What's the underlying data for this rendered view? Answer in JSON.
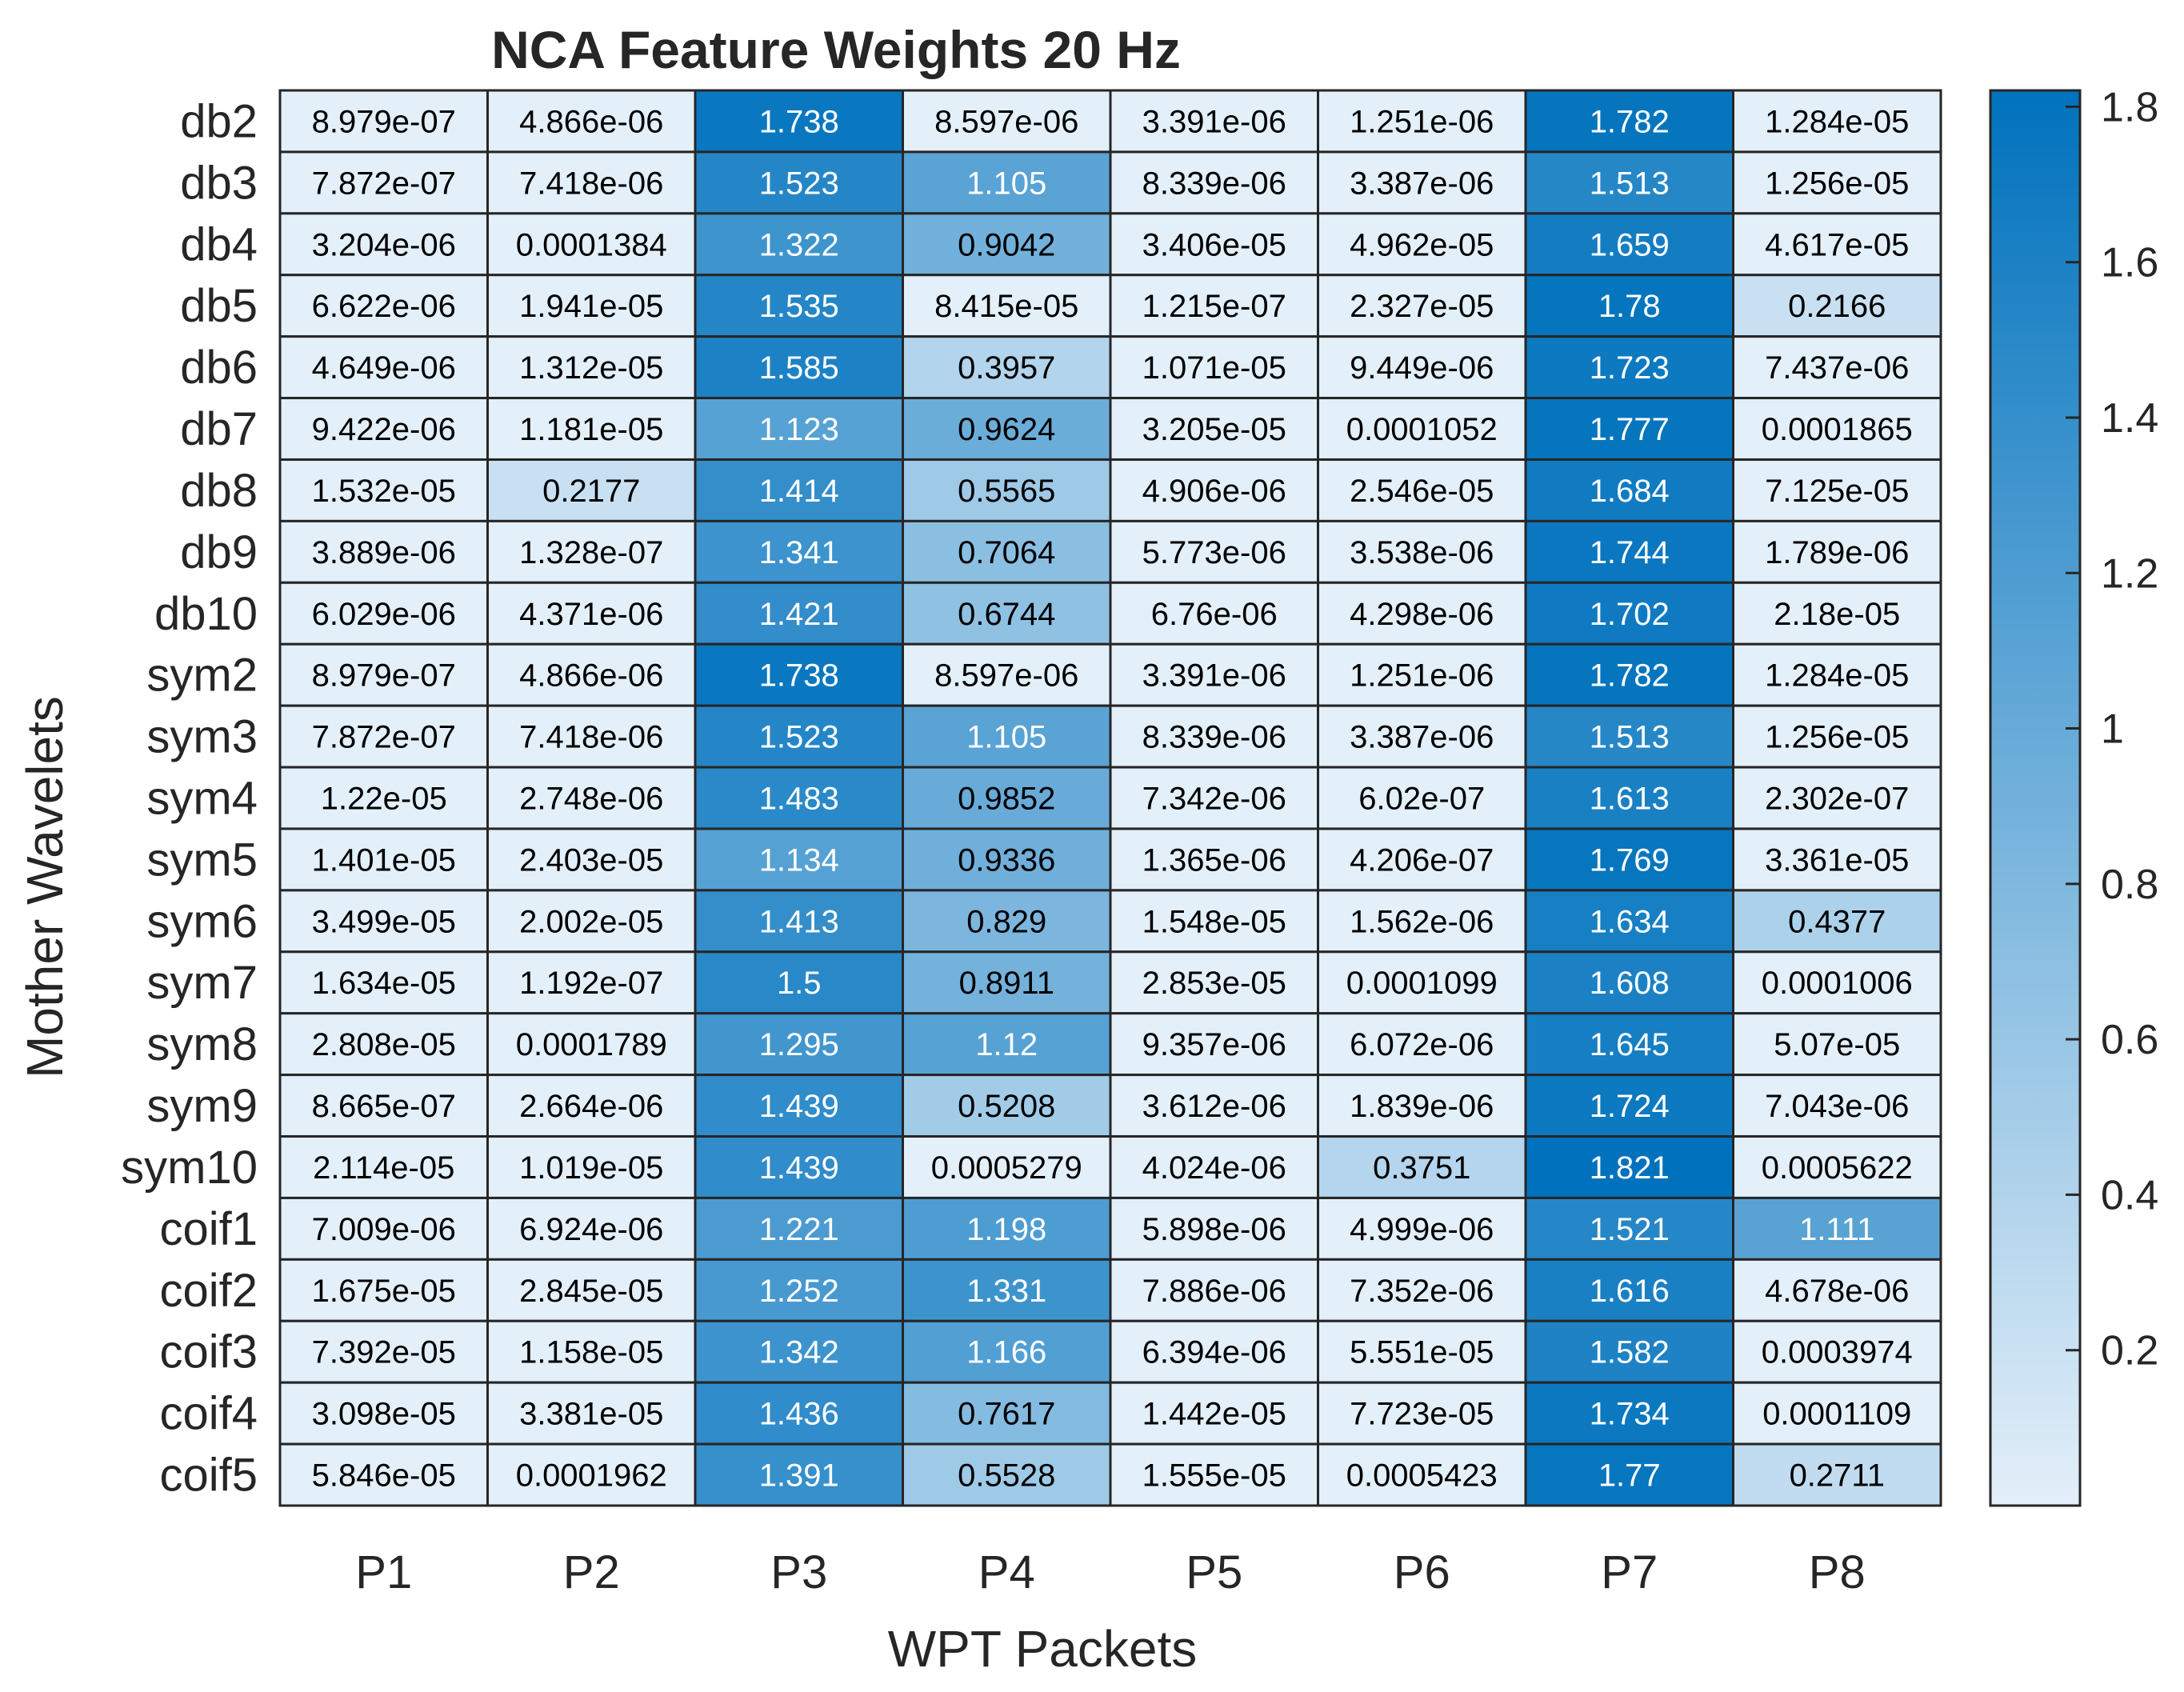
{
  "chart_data": {
    "type": "heatmap",
    "title": "NCA Feature Weights 20 Hz",
    "xlabel": "WPT Packets",
    "ylabel": "Mother Wavelets",
    "x_categories": [
      "P1",
      "P2",
      "P3",
      "P4",
      "P5",
      "P6",
      "P7",
      "P8"
    ],
    "y_categories": [
      "db2",
      "db3",
      "db4",
      "db5",
      "db6",
      "db7",
      "db8",
      "db9",
      "db10",
      "sym2",
      "sym3",
      "sym4",
      "sym5",
      "sym6",
      "sym7",
      "sym8",
      "sym9",
      "sym10",
      "coif1",
      "coif2",
      "coif3",
      "coif4",
      "coif5"
    ],
    "values": [
      [
        "8.979e-07",
        "4.866e-06",
        "1.738",
        "8.597e-06",
        "3.391e-06",
        "1.251e-06",
        "1.782",
        "1.284e-05"
      ],
      [
        "7.872e-07",
        "7.418e-06",
        "1.523",
        "1.105",
        "8.339e-06",
        "3.387e-06",
        "1.513",
        "1.256e-05"
      ],
      [
        "3.204e-06",
        "0.0001384",
        "1.322",
        "0.9042",
        "3.406e-05",
        "4.962e-05",
        "1.659",
        "4.617e-05"
      ],
      [
        "6.622e-06",
        "1.941e-05",
        "1.535",
        "8.415e-05",
        "1.215e-07",
        "2.327e-05",
        "1.78",
        "0.2166"
      ],
      [
        "4.649e-06",
        "1.312e-05",
        "1.585",
        "0.3957",
        "1.071e-05",
        "9.449e-06",
        "1.723",
        "7.437e-06"
      ],
      [
        "9.422e-06",
        "1.181e-05",
        "1.123",
        "0.9624",
        "3.205e-05",
        "0.0001052",
        "1.777",
        "0.0001865"
      ],
      [
        "1.532e-05",
        "0.2177",
        "1.414",
        "0.5565",
        "4.906e-06",
        "2.546e-05",
        "1.684",
        "7.125e-05"
      ],
      [
        "3.889e-06",
        "1.328e-07",
        "1.341",
        "0.7064",
        "5.773e-06",
        "3.538e-06",
        "1.744",
        "1.789e-06"
      ],
      [
        "6.029e-06",
        "4.371e-06",
        "1.421",
        "0.6744",
        "6.76e-06",
        "4.298e-06",
        "1.702",
        "2.18e-05"
      ],
      [
        "8.979e-07",
        "4.866e-06",
        "1.738",
        "8.597e-06",
        "3.391e-06",
        "1.251e-06",
        "1.782",
        "1.284e-05"
      ],
      [
        "7.872e-07",
        "7.418e-06",
        "1.523",
        "1.105",
        "8.339e-06",
        "3.387e-06",
        "1.513",
        "1.256e-05"
      ],
      [
        "1.22e-05",
        "2.748e-06",
        "1.483",
        "0.9852",
        "7.342e-06",
        "6.02e-07",
        "1.613",
        "2.302e-07"
      ],
      [
        "1.401e-05",
        "2.403e-05",
        "1.134",
        "0.9336",
        "1.365e-06",
        "4.206e-07",
        "1.769",
        "3.361e-05"
      ],
      [
        "3.499e-05",
        "2.002e-05",
        "1.413",
        "0.829",
        "1.548e-05",
        "1.562e-06",
        "1.634",
        "0.4377"
      ],
      [
        "1.634e-05",
        "1.192e-07",
        "1.5",
        "0.8911",
        "2.853e-05",
        "0.0001099",
        "1.608",
        "0.0001006"
      ],
      [
        "2.808e-05",
        "0.0001789",
        "1.295",
        "1.12",
        "9.357e-06",
        "6.072e-06",
        "1.645",
        "5.07e-05"
      ],
      [
        "8.665e-07",
        "2.664e-06",
        "1.439",
        "0.5208",
        "3.612e-06",
        "1.839e-06",
        "1.724",
        "7.043e-06"
      ],
      [
        "2.114e-05",
        "1.019e-05",
        "1.439",
        "0.0005279",
        "4.024e-06",
        "0.3751",
        "1.821",
        "0.0005622"
      ],
      [
        "7.009e-06",
        "6.924e-06",
        "1.221",
        "1.198",
        "5.898e-06",
        "4.999e-06",
        "1.521",
        "1.111"
      ],
      [
        "1.675e-05",
        "2.845e-05",
        "1.252",
        "1.331",
        "7.886e-06",
        "7.352e-06",
        "1.616",
        "4.678e-06"
      ],
      [
        "7.392e-05",
        "1.158e-05",
        "1.342",
        "1.166",
        "6.394e-06",
        "5.551e-05",
        "1.582",
        "0.0003974"
      ],
      [
        "3.098e-05",
        "3.381e-05",
        "1.436",
        "0.7617",
        "1.442e-05",
        "7.723e-05",
        "1.734",
        "0.0001109"
      ],
      [
        "5.846e-05",
        "0.0001962",
        "1.391",
        "0.5528",
        "1.555e-05",
        "0.0005423",
        "1.77",
        "0.2711"
      ]
    ],
    "colorbar": {
      "range": [
        0,
        1.821
      ],
      "ticks": [
        0.2,
        0.4,
        0.6,
        0.8,
        1,
        1.2,
        1.4,
        1.6,
        1.8
      ],
      "tick_labels": [
        "0.2",
        "0.4",
        "0.6",
        "0.8",
        "1",
        "1.2",
        "1.4",
        "1.6",
        "1.8"
      ],
      "color_low": "#e3eff9",
      "color_high": "#0072bd"
    },
    "grid": true,
    "text_color_dark": "#000000",
    "text_color_light": "#ffffff"
  }
}
